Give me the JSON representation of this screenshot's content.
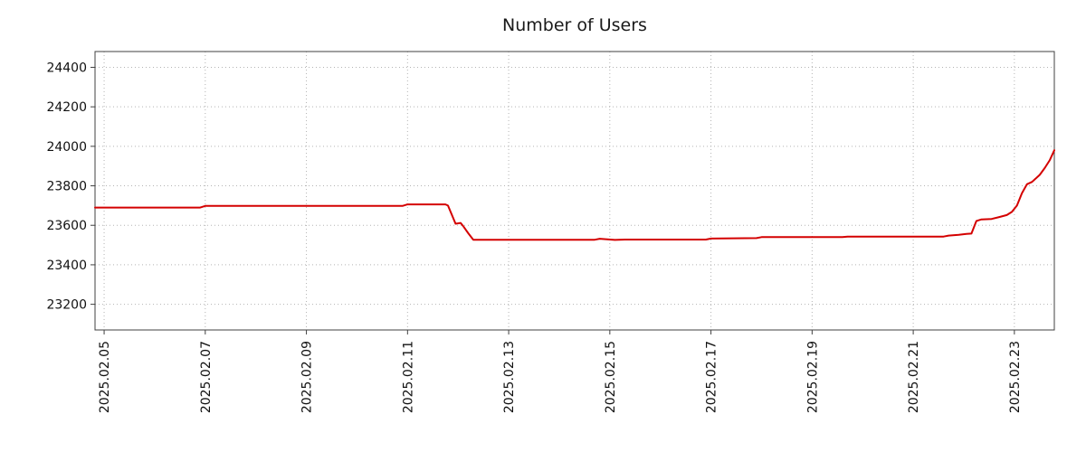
{
  "chart_data": {
    "type": "line",
    "title": "Number of Users",
    "xlabel": "",
    "ylabel": "",
    "grid": "dotted",
    "legend": "none",
    "xlim": [
      4.82,
      23.79
    ],
    "ylim": [
      23070,
      24480
    ],
    "y_ticks": [
      23200,
      23400,
      23600,
      23800,
      24000,
      24200,
      24400
    ],
    "x_ticks": [
      {
        "pos": 5,
        "label": "2025.02.05"
      },
      {
        "pos": 7,
        "label": "2025.02.07"
      },
      {
        "pos": 9,
        "label": "2025.02.09"
      },
      {
        "pos": 11,
        "label": "2025.02.11"
      },
      {
        "pos": 13,
        "label": "2025.02.13"
      },
      {
        "pos": 15,
        "label": "2025.02.15"
      },
      {
        "pos": 17,
        "label": "2025.02.17"
      },
      {
        "pos": 19,
        "label": "2025.02.19"
      },
      {
        "pos": 21,
        "label": "2025.02.21"
      },
      {
        "pos": 23,
        "label": "2025.02.23"
      }
    ],
    "x_axis_unit": "day of 2025.02",
    "series": [
      {
        "name": "users",
        "color": "#d40000",
        "points": [
          [
            4.82,
            23690
          ],
          [
            6.9,
            23690
          ],
          [
            7.0,
            23698
          ],
          [
            10.9,
            23698
          ],
          [
            11.0,
            23706
          ],
          [
            11.75,
            23706
          ],
          [
            11.8,
            23700
          ],
          [
            11.95,
            23608
          ],
          [
            12.05,
            23612
          ],
          [
            12.1,
            23596
          ],
          [
            12.2,
            23560
          ],
          [
            12.3,
            23527
          ],
          [
            14.7,
            23527
          ],
          [
            14.8,
            23532
          ],
          [
            15.1,
            23526
          ],
          [
            15.3,
            23528
          ],
          [
            16.9,
            23528
          ],
          [
            17.0,
            23533
          ],
          [
            17.9,
            23535
          ],
          [
            18.0,
            23540
          ],
          [
            19.6,
            23540
          ],
          [
            19.7,
            23543
          ],
          [
            21.6,
            23543
          ],
          [
            21.7,
            23548
          ],
          [
            21.9,
            23552
          ],
          [
            22.05,
            23556
          ],
          [
            22.15,
            23558
          ],
          [
            22.25,
            23622
          ],
          [
            22.35,
            23630
          ],
          [
            22.55,
            23632
          ],
          [
            22.7,
            23642
          ],
          [
            22.85,
            23652
          ],
          [
            22.95,
            23668
          ],
          [
            23.05,
            23700
          ],
          [
            23.15,
            23762
          ],
          [
            23.25,
            23808
          ],
          [
            23.35,
            23820
          ],
          [
            23.5,
            23855
          ],
          [
            23.6,
            23890
          ],
          [
            23.7,
            23930
          ],
          [
            23.79,
            23980
          ]
        ]
      }
    ],
    "colors": {
      "line": "#d40000",
      "grid": "#b3b3b3",
      "border": "#404040",
      "text": "#111111",
      "background": "#ffffff"
    }
  }
}
